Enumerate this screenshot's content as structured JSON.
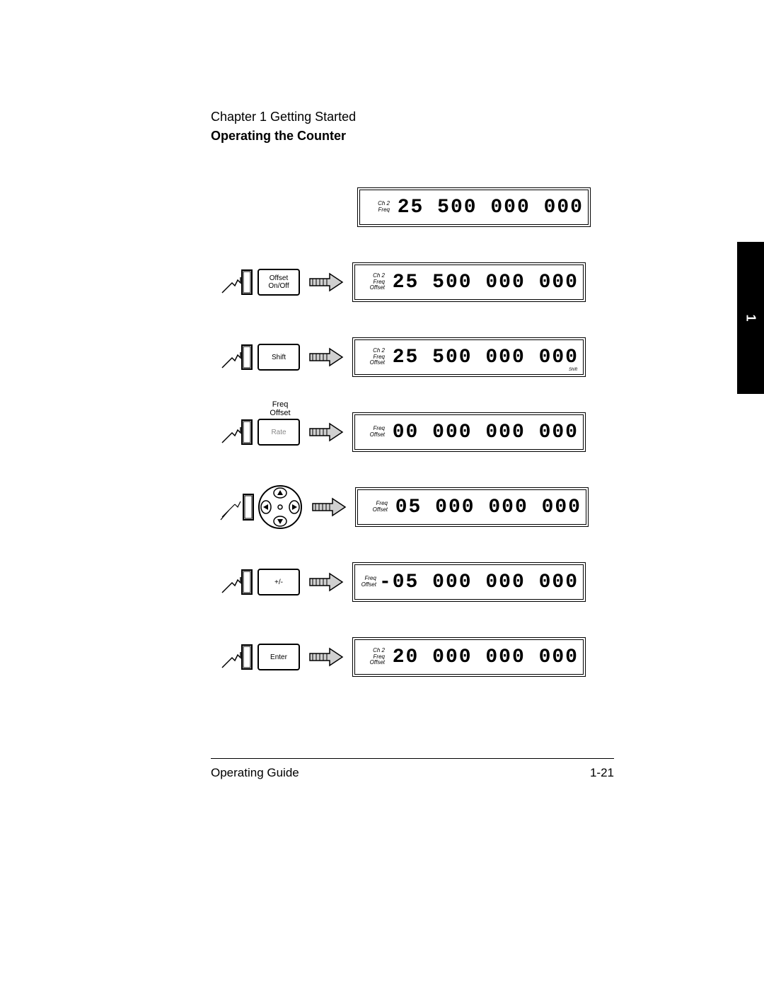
{
  "header": {
    "chapter": "Chapter 1  Getting Started",
    "section": "Operating the Counter"
  },
  "tab": {
    "label": "1",
    "bg": "#000000",
    "fg": "#ffffff"
  },
  "buttons": {
    "offset_line1": "Offset",
    "offset_line2": "On/Off",
    "shift": "Shift",
    "rate": "Rate",
    "rate_above_line1": "Freq",
    "rate_above_line2": "Offset",
    "plusminus": "+/-",
    "enter": "Enter"
  },
  "displays": [
    {
      "labels": [
        "Ch  2",
        "Freq"
      ],
      "digits": "25 500 000 000",
      "shift": false
    },
    {
      "labels": [
        "Ch  2",
        "Freq",
        "Offset"
      ],
      "digits": "25 500 000 000",
      "shift": false
    },
    {
      "labels": [
        "Ch  2",
        "Freq",
        "Offset"
      ],
      "digits": "25 500 000 000",
      "shift": true
    },
    {
      "labels": [
        "Freq",
        "Offset"
      ],
      "digits": "00 000 000 000",
      "shift": false
    },
    {
      "labels": [
        "Freq",
        "Offset"
      ],
      "digits": "05 000 000 000",
      "shift": false
    },
    {
      "labels": [
        "Freq",
        "Offset"
      ],
      "digits": "-05 000 000 000",
      "shift": false
    },
    {
      "labels": [
        "Ch  2",
        "Freq",
        "Offset"
      ],
      "digits": "20 000 000 000",
      "shift": false
    }
  ],
  "shift_label": "Shift",
  "footer": {
    "left": "Operating Guide",
    "right": "1-21"
  },
  "colors": {
    "page_bg": "#ffffff",
    "text": "#000000",
    "gray_text": "#888888",
    "arrow_fill": "#d0d0d0",
    "arrow_stroke": "#000000"
  }
}
